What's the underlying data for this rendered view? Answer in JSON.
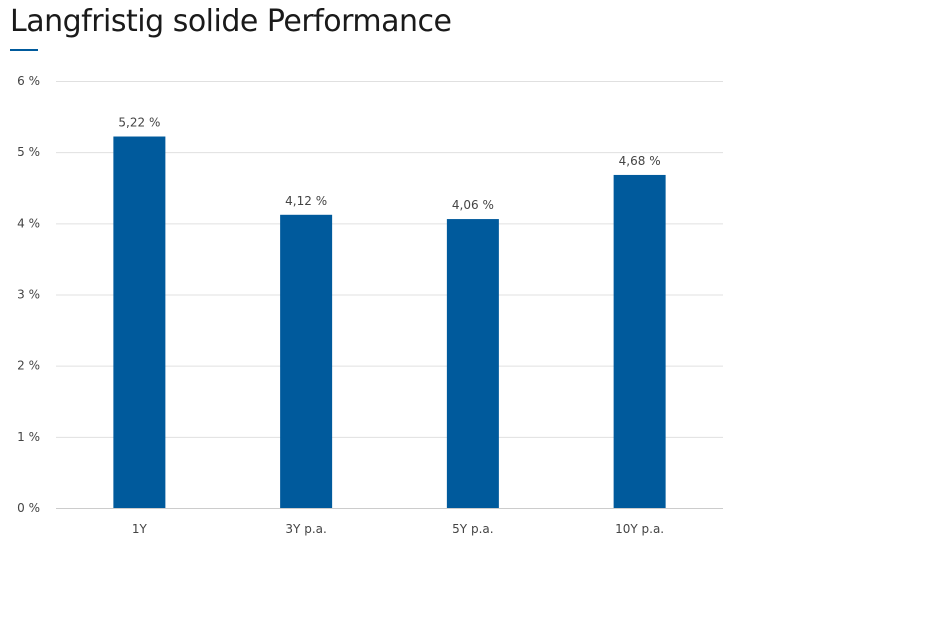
{
  "page": {
    "title": "Langfristig solide Performance"
  },
  "colors": {
    "accent": "#005a9c",
    "bar": "#005a9c",
    "grid": "#e0e0e0",
    "axis": "#cccccc",
    "text": "#444444"
  },
  "chart_data": {
    "type": "bar",
    "title": "",
    "xlabel": "",
    "ylabel": "",
    "categories": [
      "1Y",
      "3Y p.a.",
      "5Y p.a.",
      "10Y p.a."
    ],
    "values": [
      5.22,
      4.12,
      4.06,
      4.68
    ],
    "data_labels": [
      "5,22 %",
      "4,12 %",
      "4,06 %",
      "4,68 %"
    ],
    "y_ticks": [
      0,
      1,
      2,
      3,
      4,
      5,
      6
    ],
    "y_tick_labels": [
      "0 %",
      "1 %",
      "2 %",
      "3 %",
      "4 %",
      "5 %",
      "6 %"
    ],
    "ylim": [
      0,
      6
    ],
    "grid": true,
    "legend": "none"
  }
}
